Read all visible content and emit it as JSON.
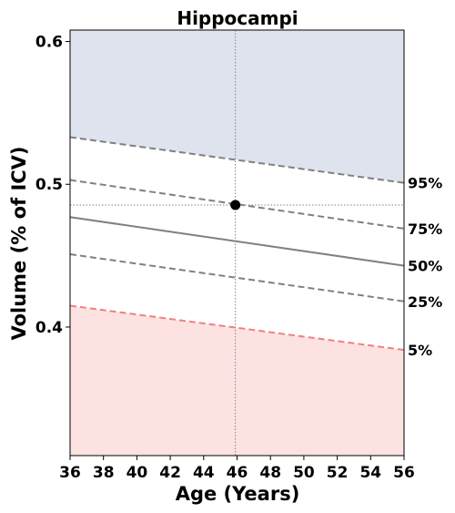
{
  "chart_data": {
    "type": "line",
    "title": "Hippocampi",
    "xlabel": "Age (Years)",
    "ylabel": "Volume (% of ICV)",
    "xlim": [
      36,
      56
    ],
    "ylim": [
      0.31,
      0.608
    ],
    "xticks": [
      36,
      38,
      40,
      42,
      44,
      46,
      48,
      50,
      52,
      54,
      56
    ],
    "yticks": [
      0.4,
      0.5,
      0.6
    ],
    "ytick_labels": [
      "0.4",
      "0.5",
      "0.6"
    ],
    "grid": false,
    "series": [
      {
        "name": "95%",
        "style": "dashed",
        "color": "#808080",
        "x": [
          36,
          56
        ],
        "y": [
          0.533,
          0.501
        ]
      },
      {
        "name": "75%",
        "style": "dashed",
        "color": "#808080",
        "x": [
          36,
          56
        ],
        "y": [
          0.503,
          0.469
        ]
      },
      {
        "name": "50%",
        "style": "solid",
        "color": "#808080",
        "x": [
          36,
          56
        ],
        "y": [
          0.477,
          0.443
        ]
      },
      {
        "name": "25%",
        "style": "dashed",
        "color": "#808080",
        "x": [
          36,
          56
        ],
        "y": [
          0.451,
          0.418
        ]
      },
      {
        "name": "5%",
        "style": "dashed",
        "color": "#f08080",
        "x": [
          36,
          56
        ],
        "y": [
          0.415,
          0.384
        ]
      }
    ],
    "bands": [
      {
        "region": "above-95",
        "color": "#dfe3ee"
      },
      {
        "region": "below-5",
        "color": "#fde2e2"
      }
    ],
    "subject_point": {
      "x": 45.9,
      "y": 0.4855,
      "color": "#000000"
    },
    "reference_lines_color": "#808080"
  }
}
